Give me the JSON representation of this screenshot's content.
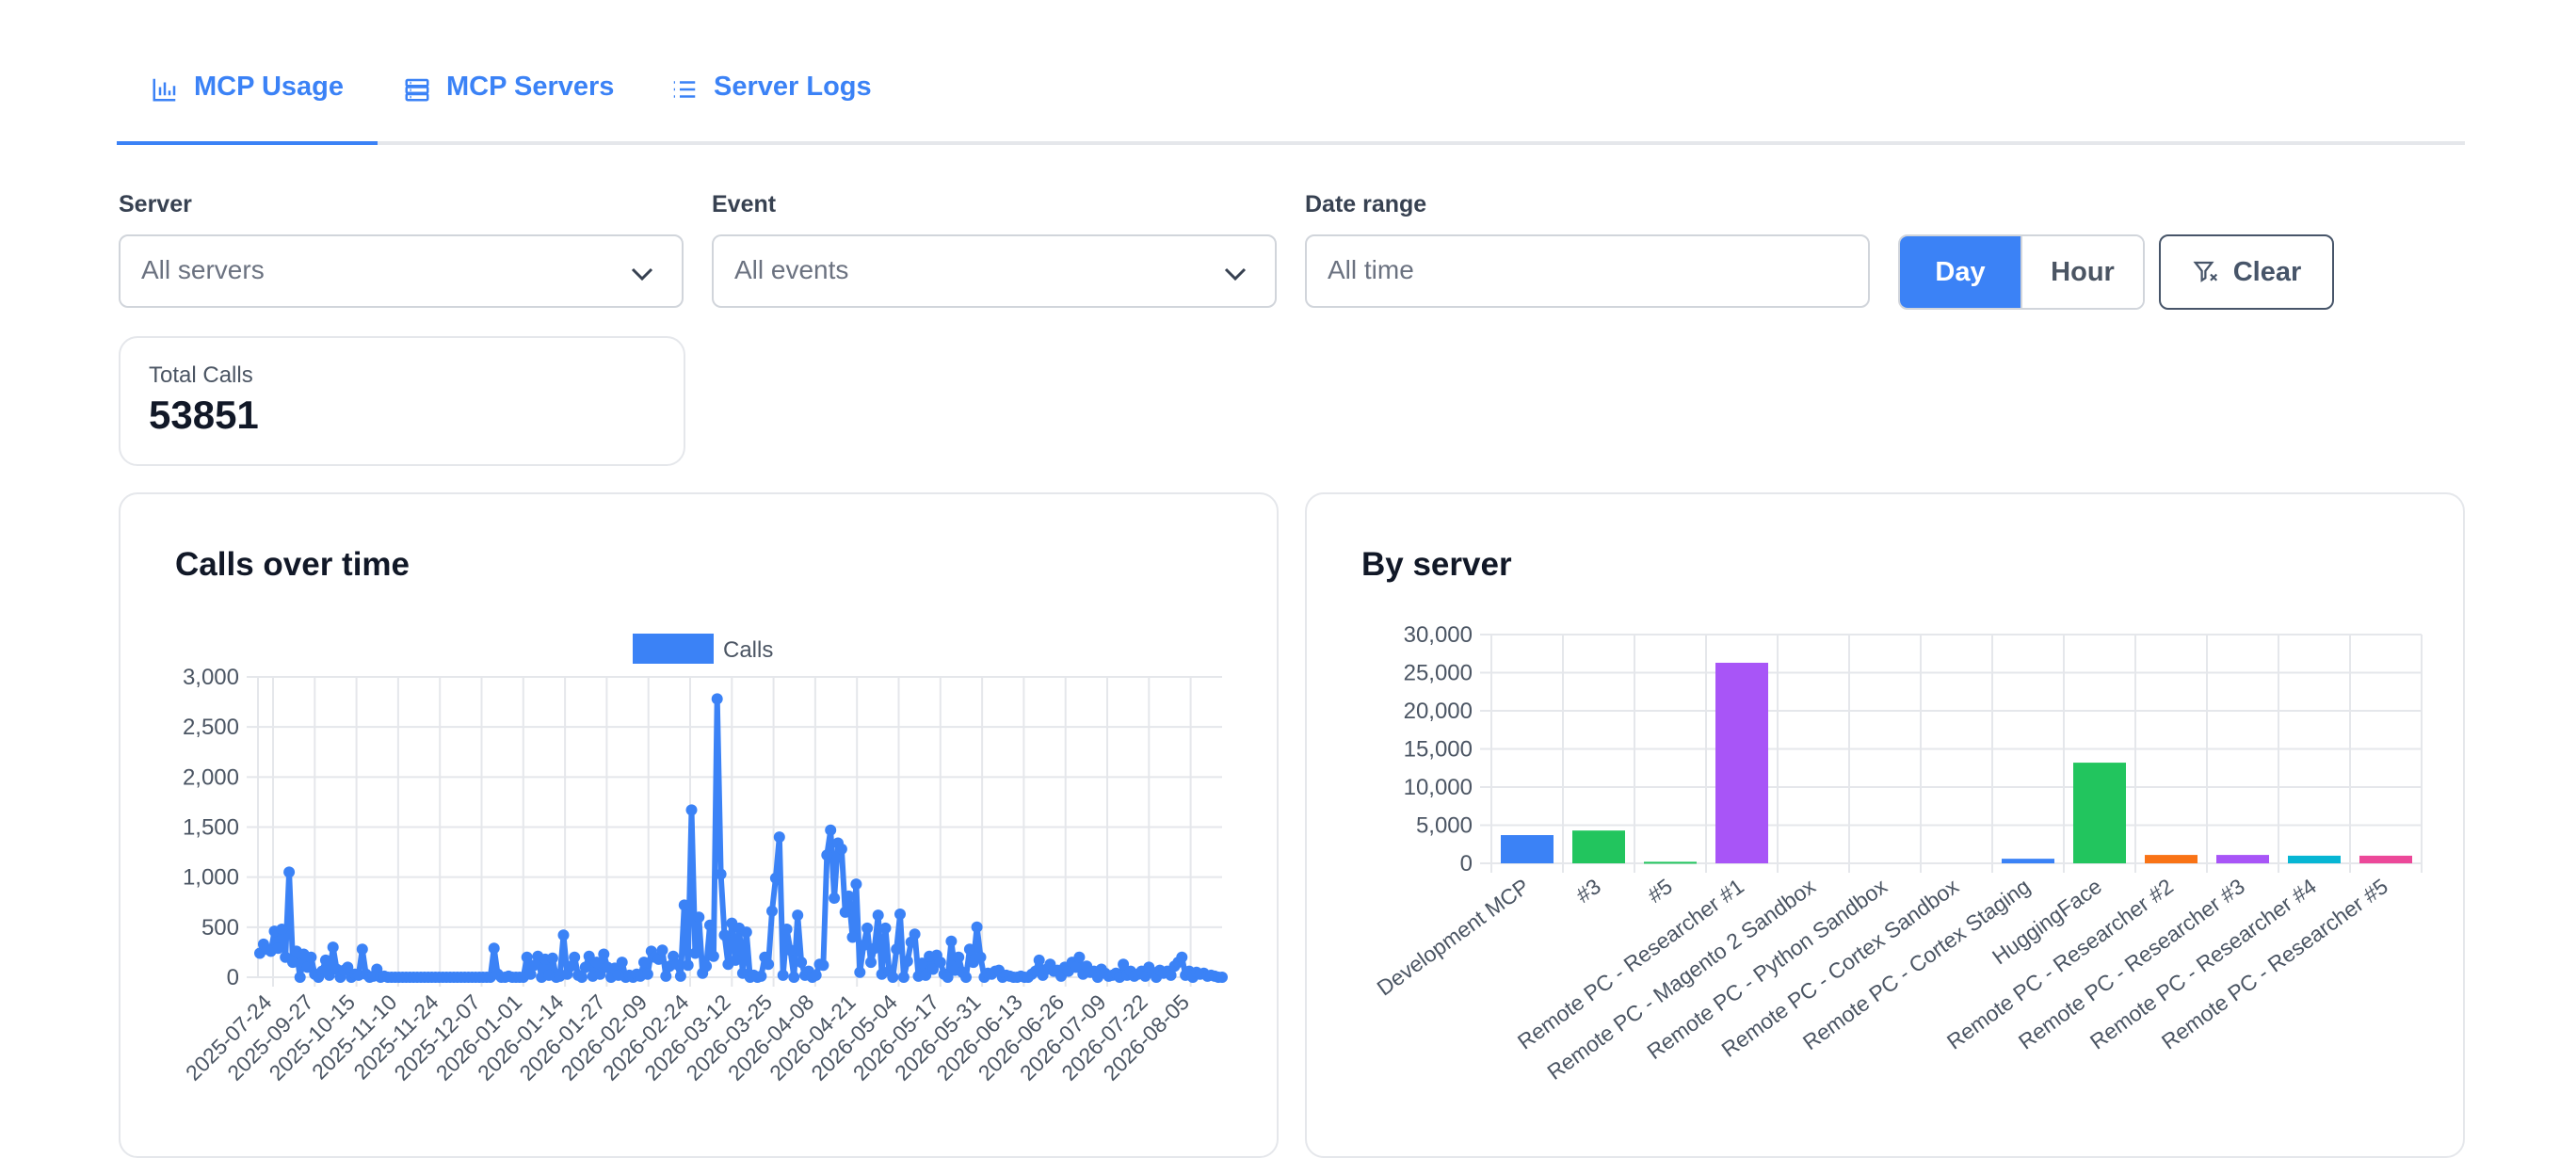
{
  "tabs": [
    {
      "label": "MCP Usage",
      "icon": "bar-chart-icon",
      "active": true
    },
    {
      "label": "MCP Servers",
      "icon": "server-icon",
      "active": false
    },
    {
      "label": "Server Logs",
      "icon": "list-icon",
      "active": false
    }
  ],
  "filters": {
    "server": {
      "label": "Server",
      "value": "All servers"
    },
    "event": {
      "label": "Event",
      "value": "All events"
    },
    "date_range": {
      "label": "Date range",
      "placeholder": "All time"
    },
    "granularity": {
      "options": [
        "Day",
        "Hour"
      ],
      "selected": "Day"
    },
    "clear_label": "Clear"
  },
  "summary": {
    "total_calls_label": "Total Calls",
    "total_calls_value": "53851"
  },
  "colors": {
    "accent": "#3b82f6",
    "green": "#22c55e",
    "purple": "#a855f7",
    "orange": "#f97316",
    "cyan": "#06b6d4",
    "pink": "#ec4899"
  },
  "chart_data": [
    {
      "title": "Calls over time",
      "type": "line",
      "legend_position": "top",
      "legend": [
        "Calls"
      ],
      "ylim": [
        0,
        3000
      ],
      "yticks": [
        "0",
        "500",
        "1,000",
        "1,500",
        "2,000",
        "2,500",
        "3,000"
      ],
      "x_tick_labels": [
        "2025-07-24",
        "2025-09-27",
        "2025-10-15",
        "2025-11-10",
        "2025-11-24",
        "2025-12-07",
        "2026-01-01",
        "2026-01-14",
        "2026-01-27",
        "2026-02-09",
        "2026-02-24",
        "2026-03-12",
        "2026-03-25",
        "2026-04-08",
        "2026-04-21",
        "2026-05-04",
        "2026-05-17",
        "2026-05-31",
        "2026-06-13",
        "2026-06-26",
        "2026-07-09",
        "2026-07-22",
        "2026-08-05"
      ],
      "grid": true,
      "series": [
        {
          "name": "Calls",
          "values": [
            240,
            330,
            280,
            260,
            460,
            290,
            480,
            200,
            1050,
            150,
            260,
            0,
            230,
            100,
            200,
            30,
            0,
            60,
            170,
            20,
            300,
            80,
            0,
            70,
            100,
            0,
            30,
            20,
            280,
            30,
            0,
            10,
            80,
            0,
            10,
            0,
            0,
            0,
            0,
            0,
            0,
            0,
            0,
            0,
            0,
            0,
            0,
            0,
            0,
            0,
            0,
            0,
            0,
            0,
            0,
            0,
            0,
            0,
            0,
            0,
            0,
            0,
            0,
            0,
            290,
            30,
            0,
            0,
            10,
            0,
            0,
            0,
            0,
            200,
            30,
            120,
            210,
            0,
            180,
            20,
            190,
            0,
            10,
            420,
            30,
            110,
            200,
            20,
            0,
            100,
            210,
            10,
            150,
            30,
            230,
            100,
            0,
            90,
            20,
            150,
            0,
            20,
            0,
            30,
            10,
            150,
            30,
            260,
            200,
            180,
            270,
            10,
            110,
            210,
            130,
            10,
            720,
            120,
            1670,
            240,
            600,
            40,
            110,
            520,
            210,
            2780,
            1030,
            420,
            130,
            540,
            170,
            490,
            40,
            450,
            0,
            20,
            0,
            10,
            200,
            130,
            660,
            990,
            1400,
            20,
            480,
            270,
            0,
            620,
            150,
            20,
            60,
            0,
            20,
            130,
            120,
            1220,
            1470,
            790,
            1340,
            1280,
            650,
            810,
            400,
            930,
            50,
            320,
            490,
            150,
            290,
            620,
            30,
            490,
            60,
            0,
            280,
            630,
            0,
            160,
            350,
            430,
            10,
            140,
            20,
            210,
            80,
            220,
            150,
            30,
            0,
            360,
            70,
            200,
            50,
            0,
            280,
            150,
            500,
            200,
            0,
            40,
            30,
            60,
            70,
            0,
            20,
            10,
            0,
            0,
            10,
            0,
            0,
            30,
            60,
            170,
            20,
            80,
            130,
            60,
            70,
            10,
            100,
            60,
            150,
            100,
            200,
            30,
            110,
            50,
            60,
            0,
            80,
            40,
            10,
            20,
            40,
            0,
            130,
            20,
            60,
            10,
            30,
            60,
            10,
            100,
            50,
            0,
            70,
            40,
            60,
            20,
            110,
            150,
            200,
            20,
            60,
            0,
            50,
            30,
            40,
            10,
            20,
            10,
            0,
            0
          ]
        }
      ]
    },
    {
      "title": "By server",
      "type": "bar",
      "ylim": [
        0,
        30000
      ],
      "yticks": [
        "0",
        "5,000",
        "10,000",
        "15,000",
        "20,000",
        "25,000",
        "30,000"
      ],
      "grid": true,
      "categories": [
        "Development MCP",
        "#3",
        "#5",
        "Remote PC - Researcher #1",
        "Remote PC - Magento 2 Sandbox",
        "Remote PC - Python Sandbox",
        "Remote PC - Cortex Sandbox",
        "Remote PC - Cortex Staging",
        "HuggingFace",
        "Remote PC - Researcher #2",
        "Remote PC - Researcher #3",
        "Remote PC - Researcher #4",
        "Remote PC - Researcher #5"
      ],
      "values": [
        3700,
        4300,
        200,
        26300,
        0,
        0,
        0,
        600,
        13200,
        1100,
        1100,
        1000,
        1000
      ],
      "bar_colors": [
        "#3b82f6",
        "#22c55e",
        "#22c55e",
        "#a855f7",
        "#a855f7",
        "#a855f7",
        "#a855f7",
        "#3b82f6",
        "#22c55e",
        "#f97316",
        "#a855f7",
        "#06b6d4",
        "#ec4899"
      ]
    }
  ]
}
